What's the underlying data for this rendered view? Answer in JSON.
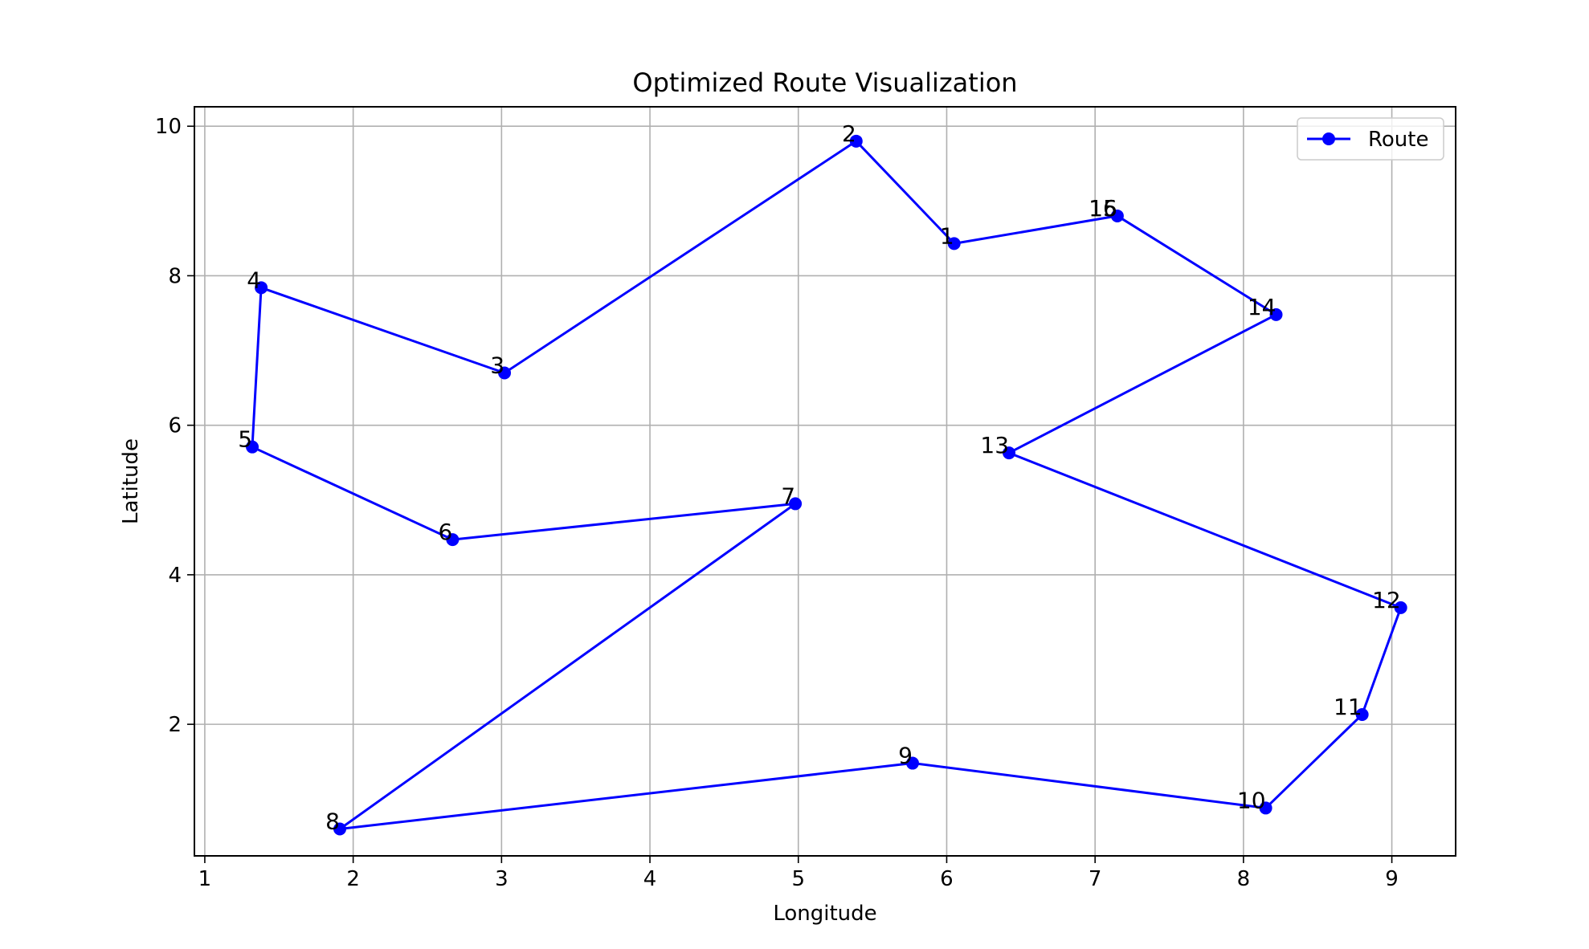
{
  "chart_data": {
    "type": "line",
    "title": "Optimized Route Visualization",
    "xlabel": "Longitude",
    "ylabel": "Latitude",
    "xlim": [
      0.93,
      9.43
    ],
    "ylim": [
      0.24,
      10.26
    ],
    "xticks": [
      1,
      2,
      3,
      4,
      5,
      6,
      7,
      8,
      9
    ],
    "yticks": [
      2,
      4,
      6,
      8,
      10
    ],
    "grid": true,
    "legend_position": "top-right",
    "series": [
      {
        "name": "Route",
        "color": "#0000ff",
        "marker": "circle",
        "points": [
          {
            "label": "1",
            "x": 6.05,
            "y": 8.43
          },
          {
            "label": "2",
            "x": 5.39,
            "y": 9.8
          },
          {
            "label": "3",
            "x": 3.02,
            "y": 6.7
          },
          {
            "label": "4",
            "x": 1.38,
            "y": 7.84
          },
          {
            "label": "5",
            "x": 1.32,
            "y": 5.71
          },
          {
            "label": "6",
            "x": 2.67,
            "y": 4.47
          },
          {
            "label": "7",
            "x": 4.98,
            "y": 4.95
          },
          {
            "label": "8",
            "x": 1.91,
            "y": 0.6
          },
          {
            "label": "9",
            "x": 5.77,
            "y": 1.48
          },
          {
            "label": "10",
            "x": 8.15,
            "y": 0.88
          },
          {
            "label": "11",
            "x": 8.8,
            "y": 2.13
          },
          {
            "label": "12",
            "x": 9.06,
            "y": 3.56
          },
          {
            "label": "13",
            "x": 6.42,
            "y": 5.63
          },
          {
            "label": "14",
            "x": 8.22,
            "y": 7.48
          },
          {
            "label": "15",
            "x": 7.15,
            "y": 8.8
          },
          {
            "label": "16",
            "x": 7.15,
            "y": 8.8
          },
          {
            "label": "1",
            "x": 6.05,
            "y": 8.43
          }
        ]
      }
    ]
  }
}
